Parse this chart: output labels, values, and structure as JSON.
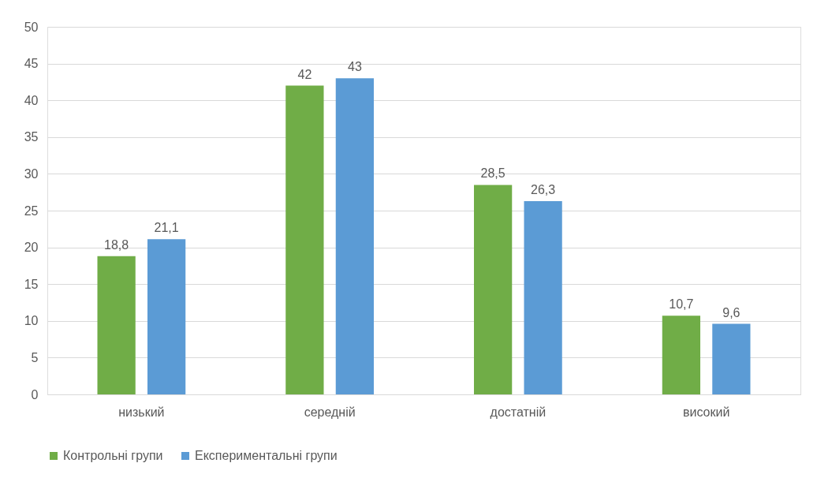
{
  "chart_data": {
    "type": "bar",
    "categories": [
      "низький",
      "середній",
      "достатній",
      "високий"
    ],
    "series": [
      {
        "name": "Контрольні групи",
        "color": "#70ad47",
        "values": [
          18.8,
          42,
          28.5,
          10.7
        ],
        "value_labels": [
          "18,8",
          "42",
          "28,5",
          "10,7"
        ]
      },
      {
        "name": "Експериментальні групи",
        "color": "#5b9bd5",
        "values": [
          21.1,
          43,
          26.3,
          9.6
        ],
        "value_labels": [
          "21,1",
          "43",
          "26,3",
          "9,6"
        ]
      }
    ],
    "ylim": [
      0,
      50
    ],
    "yticks": [
      0,
      5,
      10,
      15,
      20,
      25,
      30,
      35,
      40,
      45,
      50
    ],
    "grid": "y",
    "legend": "bottom"
  }
}
